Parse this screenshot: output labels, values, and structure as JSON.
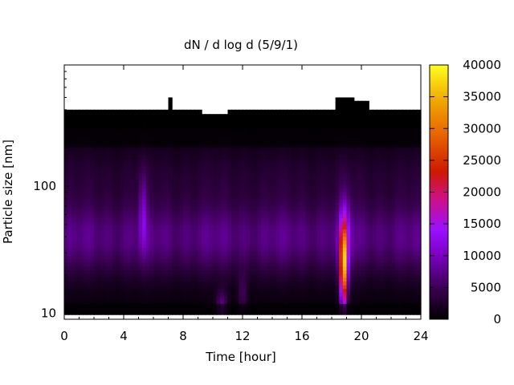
{
  "chart_data": {
    "type": "heatmap",
    "title": "dN / d log d (5/9/1)",
    "xlabel": "Time [hour]",
    "ylabel": "Particle size [nm]",
    "xlim": [
      0,
      24
    ],
    "x_ticks": [
      0,
      4,
      8,
      12,
      16,
      20,
      24
    ],
    "x_tick_labels": [
      "0",
      "4",
      "8",
      "12",
      "16",
      "20",
      "24"
    ],
    "y_scale": "log",
    "ylim": [
      9,
      900
    ],
    "y_ticks": [
      10,
      100
    ],
    "y_tick_labels": [
      "10",
      "100"
    ],
    "grid": false,
    "colorbar": {
      "range": [
        0,
        40000
      ],
      "ticks": [
        0,
        5000,
        10000,
        15000,
        20000,
        25000,
        30000,
        35000,
        40000
      ],
      "tick_labels": [
        "0",
        "5000",
        "10000",
        "15000",
        "20000",
        "25000",
        "30000",
        "35000",
        "40000"
      ],
      "colormap": "gnuplot (black-purple-red-orange-yellow)"
    },
    "no_data_color": "#ffffff",
    "features": [
      {
        "description": "broad background mode",
        "time_range": [
          0,
          24
        ],
        "size_nm": 40,
        "value": 8000
      },
      {
        "description": "measured upper size limit",
        "size_nm": 400
      },
      {
        "description": "intense event (nucleation burst)",
        "time_hour": 18.8,
        "size_range_nm": [
          10,
          50
        ],
        "peak_value": 28000
      }
    ]
  }
}
